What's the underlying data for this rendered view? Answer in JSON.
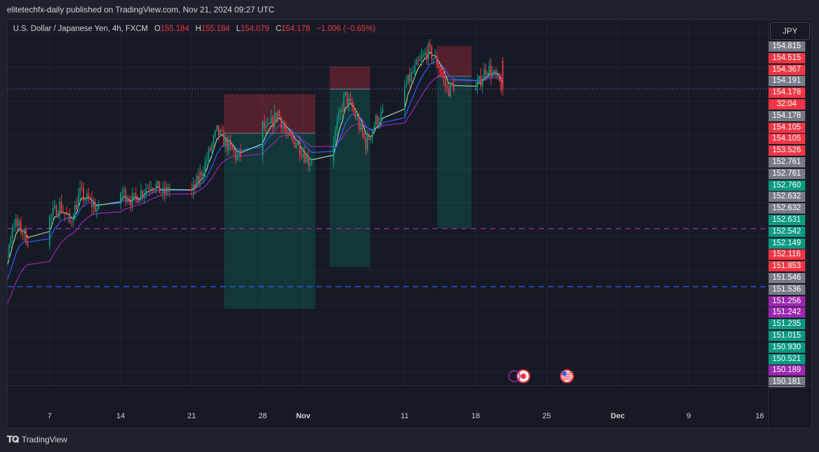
{
  "header": {
    "text": "elitetechfx-daily published on TradingView.com, Nov 21, 2024 09:27 UTC"
  },
  "legend": {
    "symbol": "U.S. Dollar / Japanese Yen, 4h, FXCM",
    "open_label": "O",
    "open": "155.184",
    "high_label": "H",
    "high": "155.184",
    "low_label": "L",
    "low": "154.079",
    "close_label": "C",
    "close": "154.178",
    "change": "−1.006 (−0.65%)"
  },
  "currency_button": "JPY",
  "footer": {
    "brand": "TradingView"
  },
  "colors": {
    "up": "#089981",
    "down": "#f23645",
    "grey": "#787b86",
    "purple": "#9c27b0",
    "bg": "#161a25"
  },
  "chart_data": {
    "type": "candlestick",
    "timeframe": "4h",
    "symbol": "USDJPY",
    "y_range": [
      149.8,
      155.2
    ],
    "x_ticks": [
      {
        "label": "7",
        "day": 7
      },
      {
        "label": "14",
        "day": 14
      },
      {
        "label": "21",
        "day": 21
      },
      {
        "label": "28",
        "day": 28
      },
      {
        "label": "Nov",
        "day": 32,
        "bold": true
      },
      {
        "label": "11",
        "day": 42
      },
      {
        "label": "18",
        "day": 49
      },
      {
        "label": "25",
        "day": 56
      },
      {
        "label": "Dec",
        "day": 63,
        "bold": true
      },
      {
        "label": "9",
        "day": 70
      },
      {
        "label": "16",
        "day": 77
      }
    ],
    "price_labels": [
      {
        "value": "154.815",
        "color": "#787b86"
      },
      {
        "value": "154.515",
        "color": "#f23645"
      },
      {
        "value": "154.367",
        "color": "#f23645"
      },
      {
        "value": "154.191",
        "color": "#787b86"
      },
      {
        "value": "154.178",
        "color": "#f23645"
      },
      {
        "value": "32:04",
        "color": "#f23645"
      },
      {
        "value": "154.178",
        "color": "#787b86"
      },
      {
        "value": "154.105",
        "color": "#f23645"
      },
      {
        "value": "154.105",
        "color": "#f23645"
      },
      {
        "value": "153.526",
        "color": "#f23645"
      },
      {
        "value": "152.761",
        "color": "#787b86"
      },
      {
        "value": "152.761",
        "color": "#787b86"
      },
      {
        "value": "152.760",
        "color": "#089981"
      },
      {
        "value": "152.632",
        "color": "#787b86"
      },
      {
        "value": "152.632",
        "color": "#787b86"
      },
      {
        "value": "152.631",
        "color": "#089981"
      },
      {
        "value": "152.542",
        "color": "#089981"
      },
      {
        "value": "152.149",
        "color": "#089981"
      },
      {
        "value": "152.116",
        "color": "#f23645"
      },
      {
        "value": "151.853",
        "color": "#f23645"
      },
      {
        "value": "151.546",
        "color": "#787b86"
      },
      {
        "value": "151.536",
        "color": "#787b86"
      },
      {
        "value": "151.256",
        "color": "#9c27b0"
      },
      {
        "value": "151.242",
        "color": "#9c27b0"
      },
      {
        "value": "151.235",
        "color": "#089981"
      },
      {
        "value": "151.015",
        "color": "#089981"
      },
      {
        "value": "150.930",
        "color": "#089981"
      },
      {
        "value": "150.521",
        "color": "#089981"
      },
      {
        "value": "150.189",
        "color": "#9c27b0"
      },
      {
        "value": "150.181",
        "color": "#787b86"
      }
    ],
    "horizontal_lines": [
      {
        "price": 154.178,
        "color": "#7e57c2",
        "style": "dotted"
      },
      {
        "price": 152.116,
        "color": "#9c27b0",
        "style": "dashed"
      },
      {
        "price": 151.256,
        "color": "#2962ff",
        "style": "dashed"
      }
    ],
    "positions": [
      {
        "day_start": 24.2,
        "day_end": 33.2,
        "entry": 153.526,
        "stop": 154.105,
        "target": 150.93
      },
      {
        "day_start": 34.6,
        "day_end": 38.6,
        "entry": 154.178,
        "stop": 154.515,
        "target": 151.546
      },
      {
        "day_start": 45.2,
        "day_end": 48.6,
        "entry": 154.367,
        "stop": 154.815,
        "target": 152.116
      }
    ],
    "waypoints": [
      [
        0,
        150.32
      ],
      [
        1,
        151.15
      ],
      [
        1.8,
        151.68
      ],
      [
        2.5,
        151.45
      ],
      [
        3.4,
        152.22
      ],
      [
        4.3,
        152.08
      ],
      [
        5.2,
        151.86
      ],
      [
        6.3,
        152.14
      ],
      [
        8,
        152.46
      ],
      [
        9,
        152.2
      ],
      [
        10,
        152.64
      ],
      [
        11,
        152.5
      ],
      [
        12,
        152.36
      ],
      [
        13,
        152.46
      ],
      [
        14.1,
        152.67
      ],
      [
        15.2,
        152.52
      ],
      [
        16.3,
        152.7
      ],
      [
        17.1,
        152.8
      ],
      [
        18.2,
        152.62
      ],
      [
        19.5,
        152.82
      ],
      [
        20.5,
        152.48
      ],
      [
        22,
        152.95
      ],
      [
        23.5,
        153.55
      ],
      [
        24.5,
        153.36
      ],
      [
        25.5,
        153.16
      ],
      [
        26.5,
        153.3
      ],
      [
        27.4,
        153.77
      ],
      [
        28.4,
        153.55
      ],
      [
        29.5,
        153.84
      ],
      [
        30.5,
        153.44
      ],
      [
        31.4,
        153.38
      ],
      [
        32.5,
        153.12
      ],
      [
        33.5,
        153.2
      ],
      [
        34.4,
        153.08
      ],
      [
        35.2,
        153.55
      ],
      [
        36.1,
        154.08
      ],
      [
        37.1,
        153.8
      ],
      [
        38.2,
        153.35
      ],
      [
        39.1,
        153.7
      ],
      [
        40.2,
        153.85
      ],
      [
        41.3,
        154.0
      ],
      [
        42.2,
        154.25
      ],
      [
        43.2,
        154.52
      ],
      [
        44.3,
        154.75
      ],
      [
        45.3,
        154.55
      ],
      [
        46.2,
        154.15
      ],
      [
        47.3,
        154.3
      ],
      [
        48.1,
        153.88
      ],
      [
        49.1,
        154.2
      ],
      [
        50.1,
        154.51
      ],
      [
        51.2,
        154.3
      ],
      [
        51.7,
        154.18
      ]
    ],
    "events": [
      {
        "day": 53.7,
        "icon": "flag-jp"
      },
      {
        "day": 58,
        "icon": "flag-us"
      }
    ]
  }
}
